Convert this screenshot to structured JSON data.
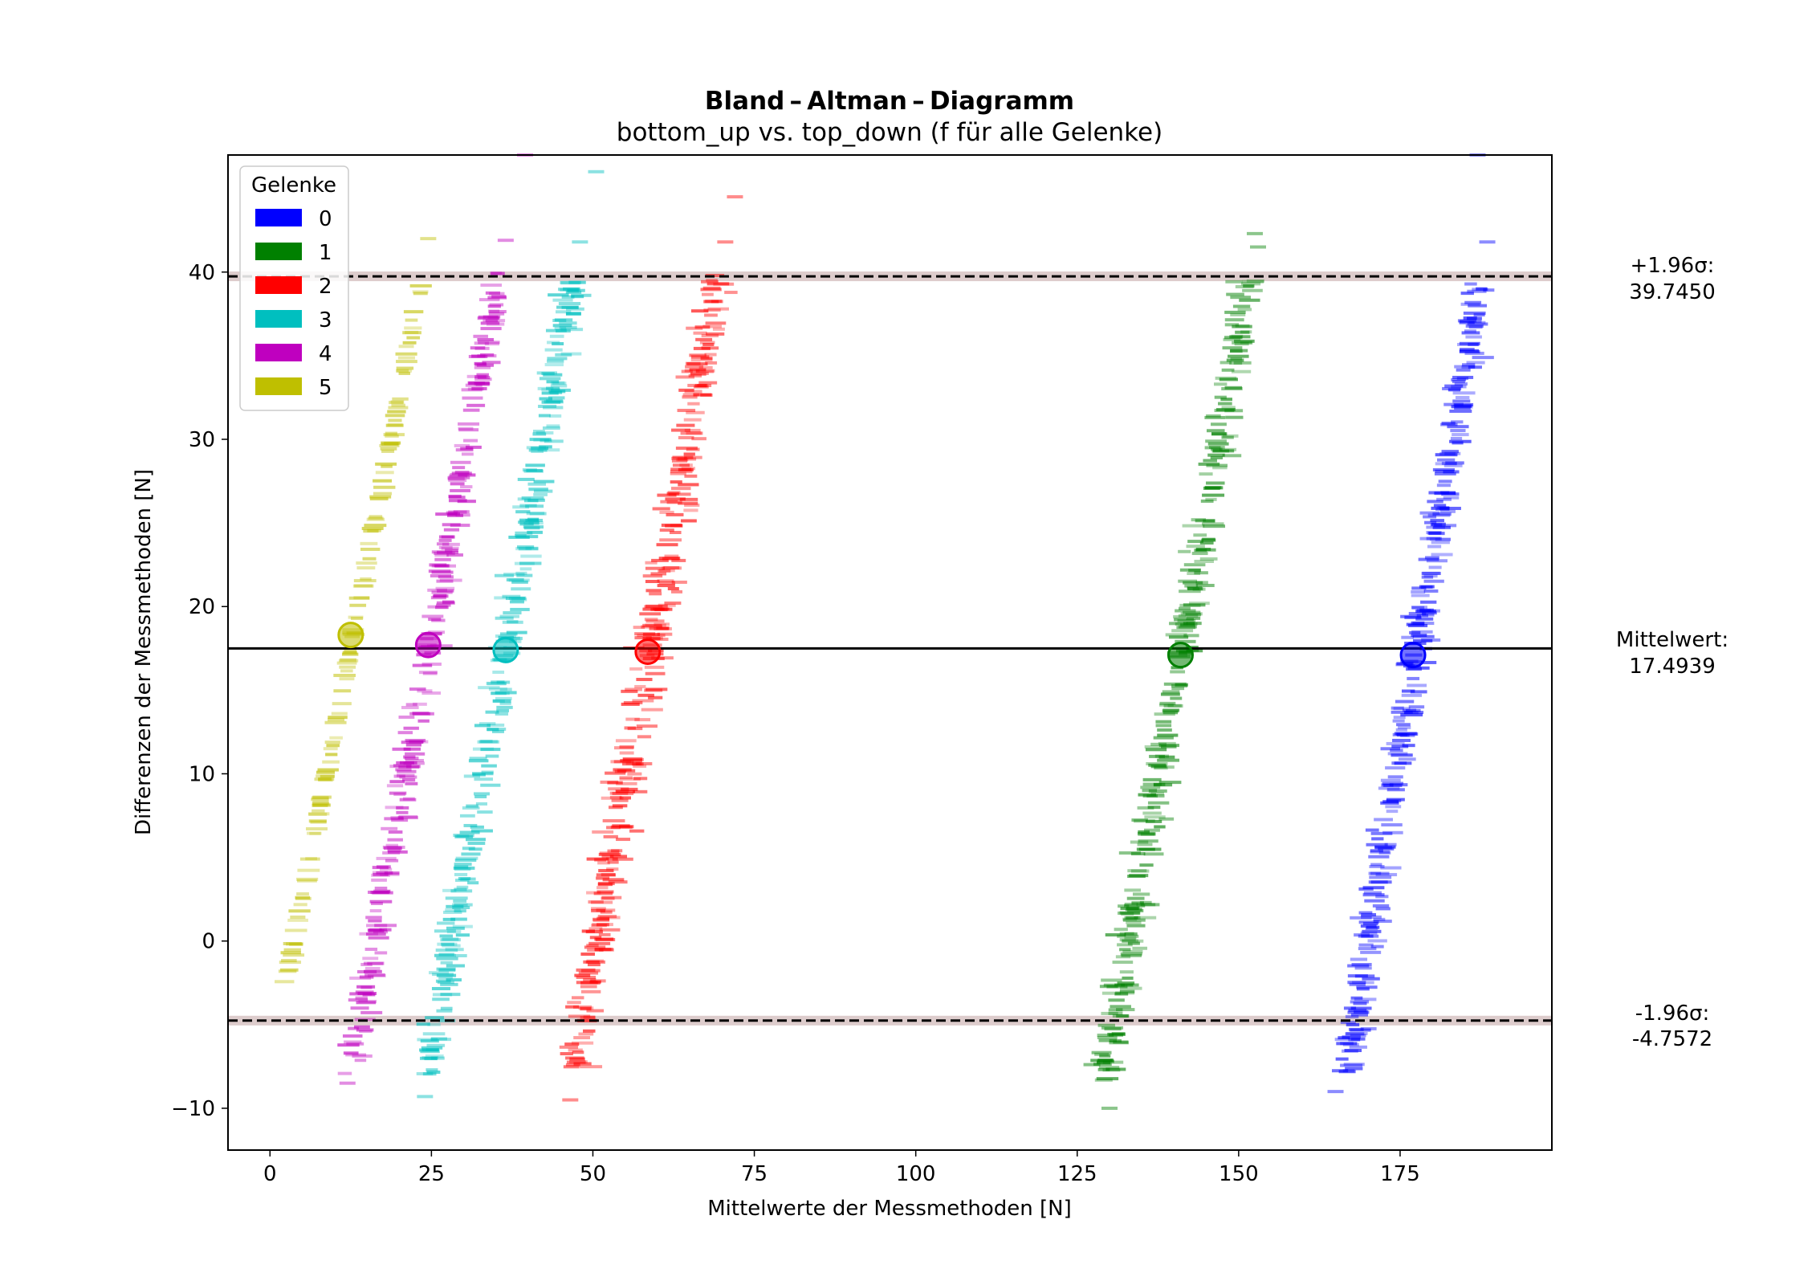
{
  "chart_data": {
    "type": "scatter",
    "title": "Bland – Altman – Diagramm",
    "subtitle": "bottom_up vs. top_down (f für alle Gelenke)",
    "xlabel": "Mittelwerte der Messmethoden [N]",
    "ylabel": "Differenzen der Messmethoden [N]",
    "xlim": [
      -6.5,
      198.5
    ],
    "ylim": [
      -12.5,
      47.0
    ],
    "x_ticks": [
      0,
      25,
      50,
      75,
      100,
      125,
      150,
      175
    ],
    "y_ticks": [
      -10,
      0,
      10,
      20,
      30,
      40
    ],
    "grid": false,
    "legend": {
      "title": "Gelenke",
      "placement": "top-left",
      "entries": [
        "0",
        "1",
        "2",
        "3",
        "4",
        "5"
      ]
    },
    "reference_lines": [
      {
        "name": "+1.96σ",
        "label_line1": "+1.96σ:",
        "label_line2": "39.7450",
        "value": 39.745,
        "style": "dashed"
      },
      {
        "name": "Mittelwert",
        "label_line1": "Mittelwert:",
        "label_line2": "17.4939",
        "value": 17.4939,
        "style": "solid"
      },
      {
        "name": "-1.96σ",
        "label_line1": "-1.96σ:",
        "label_line2": "-4.7572",
        "value": -4.7572,
        "style": "dashed"
      }
    ],
    "series": [
      {
        "name": "0",
        "color": "#0000ff",
        "trend_start": [
          166.5,
          -8.0
        ],
        "trend_end": [
          187.5,
          39.5
        ],
        "mean_point": [
          177.0,
          17.1
        ],
        "spread": 1.2,
        "count": 320,
        "outliers": [
          [
            188.5,
            41.8
          ],
          [
            187.0,
            47.0
          ],
          [
            165.0,
            -9.0
          ]
        ]
      },
      {
        "name": "1",
        "color": "#008000",
        "trend_start": [
          129.0,
          -8.5
        ],
        "trend_end": [
          151.5,
          39.5
        ],
        "mean_point": [
          141.0,
          17.1
        ],
        "spread": 1.3,
        "count": 320,
        "outliers": [
          [
            152.5,
            42.3
          ],
          [
            153.0,
            41.5
          ],
          [
            130.0,
            -10.0
          ]
        ]
      },
      {
        "name": "2",
        "color": "#ff0000",
        "trend_start": [
          47.0,
          -8.0
        ],
        "trend_end": [
          69.5,
          40.0
        ],
        "mean_point": [
          58.5,
          17.3
        ],
        "spread": 1.5,
        "count": 340,
        "outliers": [
          [
            72.0,
            44.5
          ],
          [
            70.5,
            41.8
          ],
          [
            46.5,
            -9.5
          ]
        ]
      },
      {
        "name": "3",
        "color": "#00bfbf",
        "trend_start": [
          24.5,
          -8.0
        ],
        "trend_end": [
          47.0,
          39.5
        ],
        "mean_point": [
          36.5,
          17.4
        ],
        "spread": 1.1,
        "count": 300,
        "outliers": [
          [
            50.5,
            46.0
          ],
          [
            48.0,
            41.8
          ],
          [
            24.0,
            -9.3
          ]
        ]
      },
      {
        "name": "4",
        "color": "#bf00bf",
        "trend_start": [
          12.5,
          -8.0
        ],
        "trend_end": [
          35.5,
          40.0
        ],
        "mean_point": [
          24.5,
          17.7
        ],
        "spread": 0.9,
        "count": 280,
        "outliers": [
          [
            36.5,
            41.9
          ],
          [
            39.5,
            47.0
          ],
          [
            12.0,
            -8.5
          ]
        ]
      },
      {
        "name": "5",
        "color": "#bfbf00",
        "trend_start": [
          2.5,
          -2.5
        ],
        "trend_end": [
          23.5,
          39.5
        ],
        "mean_point": [
          12.5,
          18.3
        ],
        "spread": 0.25,
        "count": 140,
        "outliers": [
          [
            24.5,
            42.0
          ]
        ]
      }
    ]
  }
}
